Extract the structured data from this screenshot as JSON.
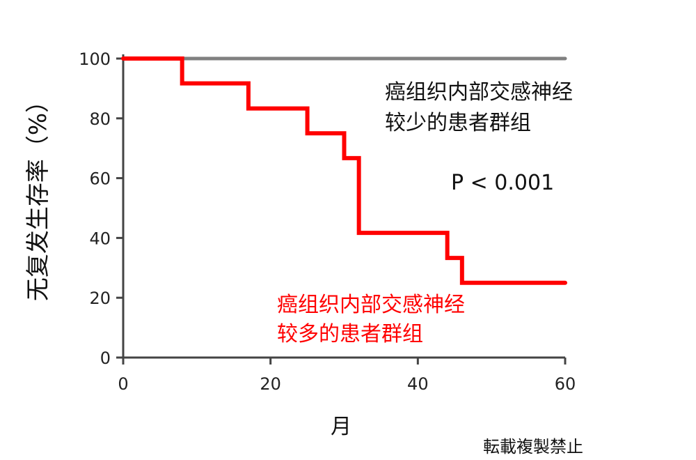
{
  "chart_data": {
    "type": "line",
    "step": true,
    "title": "",
    "xlabel": "月",
    "ylabel": "无复发生存率（%）",
    "xlim": [
      0,
      60
    ],
    "ylim": [
      0,
      100
    ],
    "xticks": [
      0,
      20,
      40,
      60
    ],
    "yticks": [
      0,
      20,
      40,
      60,
      80,
      100
    ],
    "grid": false,
    "series": [
      {
        "name": "癌组织内部交感神经较少的患者群组",
        "color": "#808080",
        "x": [
          0,
          60
        ],
        "y": [
          100,
          100
        ]
      },
      {
        "name": "癌组织内部交感神经较多的患者群组",
        "color": "#ff0000",
        "x": [
          0,
          8,
          17,
          25,
          30,
          32,
          44,
          46,
          60
        ],
        "y": [
          100,
          91.7,
          83.3,
          75,
          66.7,
          41.7,
          33.3,
          25,
          25
        ]
      }
    ],
    "annotations": {
      "group_low_line1": "癌组织内部交感神经",
      "group_low_line2": "较少的患者群组",
      "p_value": "P < 0.001",
      "group_high_line1": "癌组织内部交感神经",
      "group_high_line2": "较多的患者群组"
    }
  },
  "watermark": "転載複製禁止",
  "colors": {
    "axis": "#444444",
    "low_group": "#808080",
    "high_group": "#ff0000",
    "text": "#111111"
  }
}
